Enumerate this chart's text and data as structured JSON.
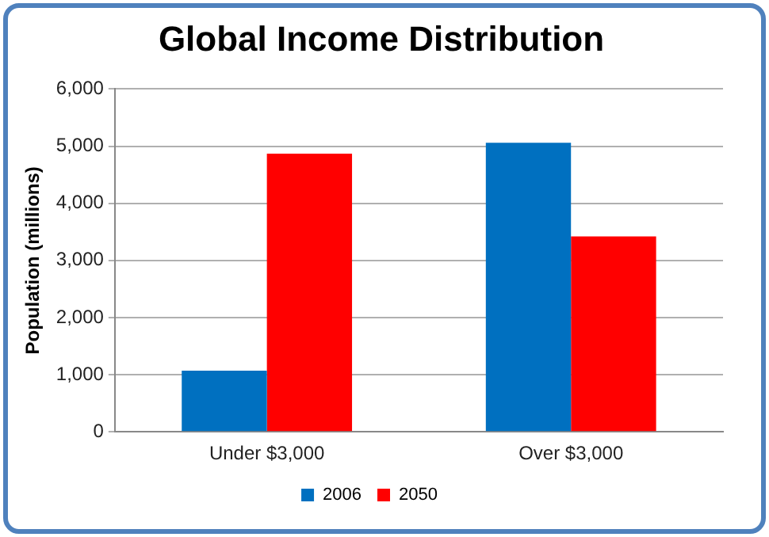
{
  "chart_data": {
    "type": "bar",
    "title": "Global Income Distribution",
    "ylabel": "Population (millions)",
    "categories": [
      "Under $3,000",
      "Over $3,000"
    ],
    "series": [
      {
        "name": "2006",
        "color": "#0070c0",
        "values": [
          1070,
          5060
        ]
      },
      {
        "name": "2050",
        "color": "#ff0000",
        "values": [
          4870,
          3420
        ]
      }
    ],
    "ylim": [
      0,
      6000
    ],
    "yticks": [
      0,
      {
        "value": 1000,
        "label": "1,000"
      },
      {
        "value": 2000,
        "label": "2,000"
      },
      {
        "value": 3000,
        "label": "3,000"
      },
      {
        "value": 4000,
        "label": "4,000"
      },
      {
        "value": 5000,
        "label": "5,000"
      },
      {
        "value": 6000,
        "label": "6,000"
      }
    ],
    "grid": "y",
    "legend": "bottom"
  }
}
